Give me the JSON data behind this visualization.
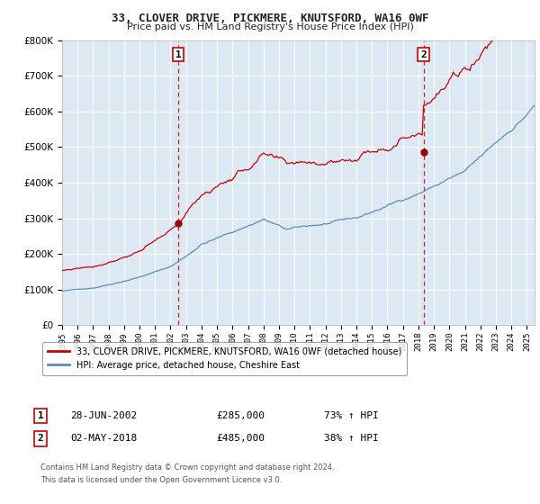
{
  "title": "33, CLOVER DRIVE, PICKMERE, KNUTSFORD, WA16 0WF",
  "subtitle": "Price paid vs. HM Land Registry's House Price Index (HPI)",
  "legend_line1": "33, CLOVER DRIVE, PICKMERE, KNUTSFORD, WA16 0WF (detached house)",
  "legend_line2": "HPI: Average price, detached house, Cheshire East",
  "annotation1_label": "1",
  "annotation1_date": "28-JUN-2002",
  "annotation1_price": "£285,000",
  "annotation1_hpi": "73% ↑ HPI",
  "annotation2_label": "2",
  "annotation2_date": "02-MAY-2018",
  "annotation2_price": "£485,000",
  "annotation2_hpi": "38% ↑ HPI",
  "footnote1": "Contains HM Land Registry data © Crown copyright and database right 2024.",
  "footnote2": "This data is licensed under the Open Government Licence v3.0.",
  "sale1_year": 2002.5,
  "sale1_value": 285000,
  "sale2_year": 2018.33,
  "sale2_value": 485000,
  "hpi_line_color": "#5b8db8",
  "price_line_color": "#cc0000",
  "sale_marker_color": "#990000",
  "dashed_line_color": "#cc0000",
  "background_color": "#ffffff",
  "plot_bg_color": "#dce9f5",
  "grid_color": "#ffffff",
  "ylim": [
    0,
    800000
  ],
  "xlim_start": 1995,
  "xlim_end": 2025.5
}
